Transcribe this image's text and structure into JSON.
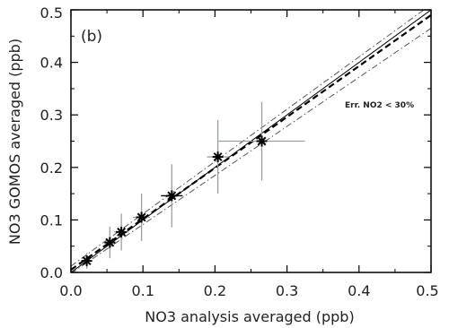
{
  "chart_data": {
    "type": "scatter",
    "panel_label": "(b)",
    "xlabel": "NO3 analysis averaged (ppb)",
    "ylabel": "NO3 GOMOS averaged (ppb)",
    "xlim": [
      0.0,
      0.5
    ],
    "ylim": [
      0.0,
      0.5
    ],
    "x_ticks": [
      "0.0",
      "0.1",
      "0.2",
      "0.3",
      "0.4",
      "0.5"
    ],
    "y_ticks": [
      "0.0",
      "0.1",
      "0.2",
      "0.3",
      "0.4",
      "0.5"
    ],
    "annotation": "Err. NO2 < 30%",
    "grid": false,
    "points": [
      {
        "x": 0.022,
        "y": 0.022,
        "xerr": 0.005,
        "yerr": 0.015
      },
      {
        "x": 0.054,
        "y": 0.057,
        "xerr": 0.008,
        "yerr": 0.03
      },
      {
        "x": 0.07,
        "y": 0.077,
        "xerr": 0.01,
        "yerr": 0.035
      },
      {
        "x": 0.098,
        "y": 0.105,
        "xerr": 0.012,
        "yerr": 0.045
      },
      {
        "x": 0.14,
        "y": 0.146,
        "xerr": 0.015,
        "yerr": 0.06
      },
      {
        "x": 0.204,
        "y": 0.22,
        "xerr": 0.015,
        "yerr": 0.07
      },
      {
        "x": 0.265,
        "y": 0.25,
        "xerr": 0.06,
        "yerr": 0.075
      }
    ],
    "lines": [
      {
        "style": "solid",
        "points": [
          [
            0.0,
            0.0
          ],
          [
            0.5,
            0.5
          ]
        ],
        "color": "#000000"
      },
      {
        "style": "dashed",
        "points": [
          [
            0.0,
            0.005
          ],
          [
            0.5,
            0.49
          ]
        ],
        "color": "#000000"
      },
      {
        "style": "dashdot",
        "points": [
          [
            0.0,
            0.012
          ],
          [
            0.5,
            0.51
          ]
        ],
        "color": "#555555"
      },
      {
        "style": "dashdot",
        "points": [
          [
            0.0,
            -0.002
          ],
          [
            0.5,
            0.465
          ]
        ],
        "color": "#555555"
      }
    ],
    "colors": {
      "errorbar": "#9aa0a0",
      "marker": "#000000",
      "axis": "#000000"
    }
  }
}
